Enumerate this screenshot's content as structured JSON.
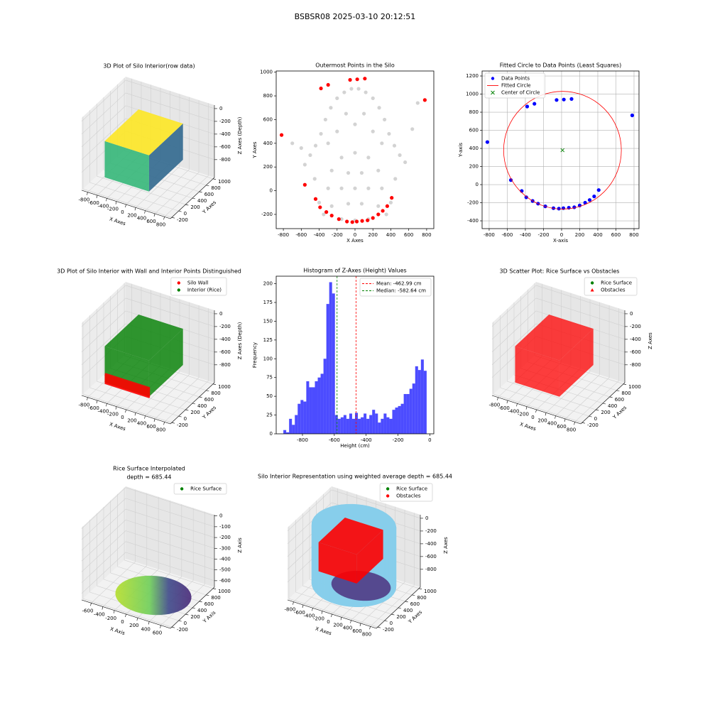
{
  "title": "BSBSR08 2025-03-10 20:12:51",
  "chart_data": [
    {
      "type": "scatter3d",
      "title": "3D Plot of Silo Interior(row data)",
      "x_label": "X Axes",
      "y_label": "Y Axes",
      "z_label": "Z Axes (Depth)",
      "xlim": [
        -925,
        925
      ],
      "ylim": [
        -240,
        1040
      ],
      "zlim": [
        -1080,
        55
      ],
      "xticks": [
        -800,
        -600,
        -400,
        -200,
        0,
        200,
        400,
        600,
        800
      ],
      "yticks": [
        -200,
        0,
        200,
        400,
        600,
        800,
        1000
      ],
      "zticks": [
        0,
        -200,
        -400,
        -600,
        -800
      ],
      "colormap": "viridis"
    },
    {
      "type": "scatter",
      "title": "Outermost Points in the Silo",
      "x_label": "X Axes",
      "y_label": "Y Axes",
      "xlim": [
        -880,
        880
      ],
      "ylim": [
        -320,
        1010
      ],
      "xticks": [
        -800,
        -600,
        -400,
        -200,
        0,
        200,
        400,
        600,
        800
      ],
      "yticks": [
        -200,
        0,
        200,
        400,
        600,
        800,
        1000
      ],
      "grid": false,
      "series": [
        {
          "color": "#d3d3d3",
          "x": [
            300,
            260,
            150,
            0,
            -150,
            -260,
            -300,
            -260,
            -150,
            0,
            150,
            260,
            150,
            75,
            -75,
            -150,
            -75,
            75,
            0,
            -440,
            -380,
            -330,
            -270,
            -200,
            -120,
            -40,
            40,
            120,
            200,
            270,
            330,
            380,
            440,
            -500,
            500,
            -560,
            560,
            -200,
            200,
            -100,
            100,
            0,
            -300,
            300,
            640,
            700,
            -700,
            -600,
            -400,
            400,
            -450,
            450,
            -350,
            350
          ],
          "y": [
            20,
            170,
            280,
            320,
            280,
            170,
            20,
            -130,
            -240,
            -250,
            -240,
            -130,
            20,
            150,
            150,
            20,
            -110,
            -110,
            20,
            380,
            480,
            600,
            700,
            780,
            830,
            860,
            860,
            830,
            780,
            700,
            600,
            480,
            380,
            300,
            300,
            220,
            240,
            500,
            500,
            650,
            650,
            560,
            400,
            400,
            520,
            740,
            400,
            360,
            -100,
            -100,
            100,
            100,
            -200,
            -200
          ]
        },
        {
          "color": "#ff0000",
          "x": [
            -820,
            -560,
            -440,
            -390,
            -320,
            -260,
            -180,
            -90,
            -30,
            20,
            80,
            140,
            200,
            260,
            310,
            360,
            410,
            780,
            -380,
            -300,
            -55,
            25,
            110
          ],
          "y": [
            470,
            50,
            -70,
            -140,
            -180,
            -210,
            -240,
            -260,
            -265,
            -260,
            -255,
            -250,
            -230,
            -200,
            -170,
            -130,
            -60,
            765,
            863,
            893,
            935,
            940,
            946
          ]
        }
      ]
    },
    {
      "type": "scatter",
      "title": "Fitted Circle to Data Points (Least Squares)",
      "x_label": "X-axis",
      "y_label": "Y-axis",
      "xlim": [
        -878,
        855
      ],
      "ylim": [
        -486,
        1255
      ],
      "xticks": [
        -800,
        -600,
        -400,
        -200,
        0,
        200,
        400,
        600,
        800
      ],
      "yticks": [
        -400,
        -200,
        0,
        200,
        400,
        600,
        800,
        1000,
        1200
      ],
      "grid": true,
      "legend": "upper left",
      "series": [
        {
          "name": "Data Points",
          "color": "#0000ff",
          "marker": "o",
          "x": [
            -820,
            -560,
            -440,
            -390,
            -320,
            -260,
            -180,
            -90,
            -30,
            20,
            80,
            140,
            200,
            260,
            310,
            360,
            410,
            780,
            -380,
            -300,
            -55,
            25,
            110
          ],
          "y": [
            470,
            50,
            -70,
            -140,
            -180,
            -210,
            -240,
            -260,
            -265,
            -260,
            -255,
            -250,
            -230,
            -200,
            -170,
            -130,
            -60,
            765,
            863,
            893,
            935,
            940,
            946
          ]
        },
        {
          "name": "Fitted Circle",
          "color": "#ff0000",
          "center": [
            10,
            380
          ],
          "radius": 650
        },
        {
          "name": "Center of Circle",
          "color": "#008000",
          "marker": "x",
          "x": [
            10
          ],
          "y": [
            380
          ]
        }
      ]
    },
    {
      "type": "scatter3d",
      "title": "3D Plot of Silo Interior with Wall and Interior Points Distinguished",
      "x_label": "X Axes",
      "y_label": "Y Axes",
      "z_label": "Z Axes (Depth)",
      "xlim": [
        -925,
        925
      ],
      "ylim": [
        -240,
        1040
      ],
      "zlim": [
        -1080,
        55
      ],
      "xticks": [
        -800,
        -600,
        -400,
        -200,
        0,
        200,
        400,
        600,
        800
      ],
      "yticks": [
        -200,
        0,
        200,
        400,
        600,
        800,
        1000
      ],
      "zticks": [
        0,
        -200,
        -400,
        -600,
        -800
      ],
      "legend": "upper right",
      "series": [
        {
          "name": "Silo Wall",
          "color": "#ff0000",
          "marker": "o"
        },
        {
          "name": "Interior (Rice)",
          "color": "#008000",
          "marker": "o"
        }
      ]
    },
    {
      "type": "histogram",
      "title": "Histogram of Z-Axes (Height) Values",
      "x_label": "Height (cm)",
      "y_label": "Frequency",
      "xlim": [
        -965,
        25
      ],
      "ylim": [
        0,
        210
      ],
      "xticks": [
        -800,
        -600,
        -400,
        -200,
        0
      ],
      "yticks": [
        0,
        25,
        50,
        75,
        100,
        125,
        150,
        175,
        200
      ],
      "grid": false,
      "color": "#0000ff",
      "alpha": 0.7,
      "legend": "upper right",
      "bins": [
        -920,
        -902,
        -884,
        -866,
        -848,
        -830,
        -812,
        -794,
        -776,
        -758,
        -740,
        -722,
        -704,
        -686,
        -668,
        -650,
        -632,
        -614,
        -596,
        -578,
        -560,
        -542,
        -524,
        -506,
        -488,
        -470,
        -452,
        -434,
        -416,
        -398,
        -380,
        -362,
        -344,
        -326,
        -308,
        -290,
        -272,
        -254,
        -236,
        -218,
        -200,
        -182,
        -164,
        -146,
        -128,
        -110,
        -92,
        -74,
        -56,
        -38,
        -20
      ],
      "counts": [
        5,
        2,
        20,
        12,
        25,
        40,
        45,
        43,
        70,
        62,
        62,
        70,
        75,
        80,
        100,
        173,
        202,
        187,
        25,
        20,
        22,
        25,
        20,
        27,
        20,
        28,
        20,
        22,
        27,
        20,
        25,
        32,
        27,
        15,
        20,
        27,
        22,
        20,
        32,
        35,
        37,
        40,
        53,
        53,
        60,
        67,
        90,
        85,
        99,
        84
      ],
      "lines": [
        {
          "name": "Mean: -462.99 cm",
          "value": -462.99,
          "color": "#ff0000"
        },
        {
          "name": "Median: -582.64 cm",
          "value": -582.64,
          "color": "#008000"
        }
      ]
    },
    {
      "type": "scatter3d",
      "title": "3D Scatter Plot: Rice Surface vs Obstacles",
      "x_label": "X Axes",
      "y_label": "Y Axes",
      "z_label": "Z Axes",
      "xlim": [
        -925,
        925
      ],
      "ylim": [
        -240,
        1040
      ],
      "zlim": [
        -1080,
        55
      ],
      "xticks": [
        -800,
        -600,
        -400,
        -200,
        0,
        200,
        400,
        600,
        800
      ],
      "yticks": [
        -200,
        0,
        200,
        400,
        600,
        800,
        1000
      ],
      "zticks": [
        0,
        -200,
        -400,
        -600,
        -800
      ],
      "legend": "upper right",
      "series": [
        {
          "name": "Rice Surface",
          "color": "#008000",
          "marker": "o"
        },
        {
          "name": "Obstacles",
          "color": "#ff0000",
          "marker": "^"
        }
      ]
    },
    {
      "type": "scatter3d",
      "title": "Rice Surface Interpolated",
      "subtitle": "depth = 685.44",
      "x_label": "X Axis",
      "y_label": "Y Axis",
      "z_label": "Z Axis",
      "xlim": [
        -765,
        765
      ],
      "ylim": [
        -240,
        1040
      ],
      "zlim": [
        -660,
        11
      ],
      "xticks": [
        -600,
        -400,
        -200,
        0,
        200,
        400,
        600
      ],
      "yticks": [
        -200,
        0,
        200,
        400,
        600,
        800,
        1000
      ],
      "zticks": [
        0,
        -100,
        -200,
        -300,
        -400,
        -500,
        -600
      ],
      "legend": "upper right",
      "series": [
        {
          "name": "Rice Surface",
          "color": "#008000",
          "marker": "o"
        }
      ]
    },
    {
      "type": "scatter3d",
      "title": "Silo Interior Representation using weighted average depth = 685.44",
      "x_label": "X Axes",
      "y_label": "Y Axes",
      "z_label": "Z Axes",
      "xlim": [
        -925,
        925
      ],
      "ylim": [
        -240,
        1040
      ],
      "zlim": [
        -1080,
        55
      ],
      "xticks": [
        -800,
        -600,
        -400,
        -200,
        0,
        200,
        400,
        600,
        800
      ],
      "yticks": [
        -200,
        0,
        200,
        400,
        600,
        800,
        1000
      ],
      "zticks": [
        0,
        -200,
        -400,
        -600,
        -800
      ],
      "legend": "upper right",
      "surface_color": "#87ceeb",
      "series": [
        {
          "name": "Rice Surface",
          "color": "#008000",
          "marker": "o"
        },
        {
          "name": "Obstacles",
          "color": "#ff0000",
          "marker": "o"
        }
      ]
    }
  ]
}
